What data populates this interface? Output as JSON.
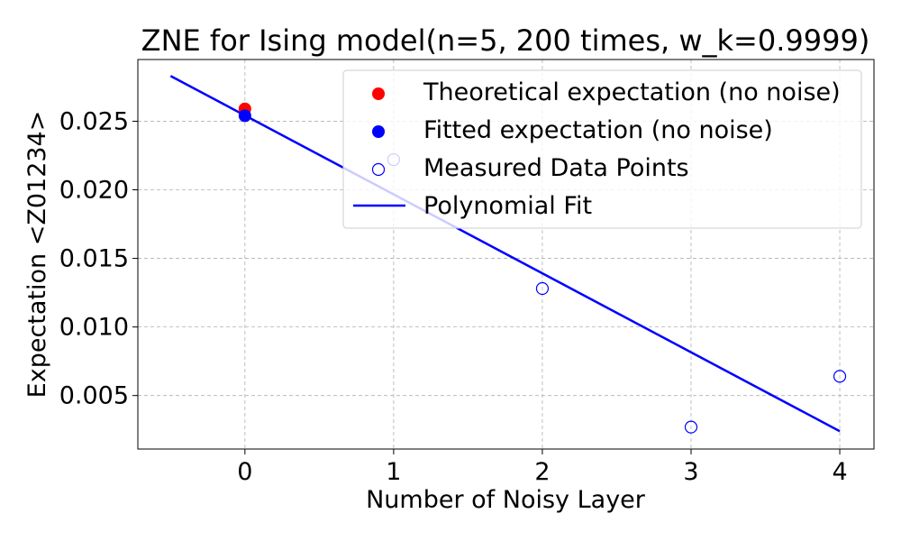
{
  "chart_data": {
    "type": "scatter",
    "title": "ZNE for Ising model(n=5, 200 times, w_k=0.9999)",
    "xlabel": "Number of Noisy Layer",
    "ylabel": "Expectation <Z01234>",
    "xlim": [
      -0.72,
      4.23
    ],
    "ylim": [
      0.0011,
      0.0295
    ],
    "xticks": [
      0,
      1,
      2,
      3,
      4
    ],
    "yticks": [
      0.005,
      0.01,
      0.015,
      0.02,
      0.025
    ],
    "ytick_labels": [
      "0.005",
      "0.010",
      "0.015",
      "0.020",
      "0.025"
    ],
    "grid": true,
    "legend_position": "top-right",
    "series": [
      {
        "name": "Theoretical expectation (no noise)",
        "kind": "filled-point",
        "color": "#ff0000",
        "points": [
          {
            "x": 0,
            "y": 0.0259
          }
        ]
      },
      {
        "name": "Fitted expectation (no noise)",
        "kind": "filled-point",
        "color": "#0000ff",
        "points": [
          {
            "x": 0,
            "y": 0.0254
          }
        ]
      },
      {
        "name": "Measured Data Points",
        "kind": "open-point",
        "color": "#0000ff",
        "points": [
          {
            "x": 1,
            "y": 0.0222
          },
          {
            "x": 2,
            "y": 0.0128
          },
          {
            "x": 3,
            "y": 0.0027
          },
          {
            "x": 4,
            "y": 0.0064
          }
        ]
      },
      {
        "name": "Polynomial Fit",
        "kind": "line",
        "color": "#0000ff",
        "points": [
          {
            "x": -0.5,
            "y": 0.0283
          },
          {
            "x": 4,
            "y": 0.0024
          }
        ]
      }
    ]
  }
}
